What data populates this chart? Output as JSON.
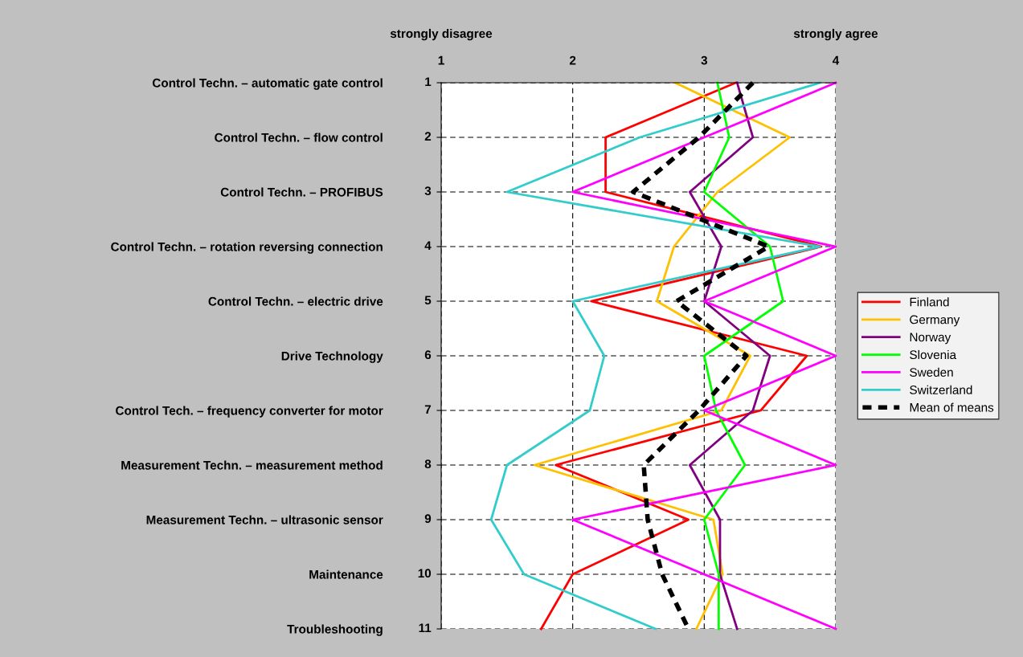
{
  "chart_data": {
    "type": "line",
    "orientation": "horizontal",
    "categories": [
      "Control Techn. – automatic gate control",
      "Control Techn. – flow control",
      "Control Techn. – PROFIBUS",
      "Control Techn. – rotation reversing connection",
      "Control Techn. – electric drive",
      "Drive Technology",
      "Control Tech. – frequency converter for motor",
      "Measurement Techn. – measurement method",
      "Measurement Techn. – ultrasonic sensor",
      "Maintenance",
      "Troubleshooting"
    ],
    "xlim": [
      1,
      4
    ],
    "xticks": [
      1,
      2,
      3,
      4
    ],
    "grid": true,
    "legend": "right",
    "marker": "none",
    "annotations": [
      "strongly disagree",
      "strongly agree",
      "1",
      "2",
      "3",
      "4",
      "5",
      "6",
      "7",
      "8",
      "9",
      "10",
      "11"
    ],
    "series": [
      {
        "name": "Finland",
        "color": "#ff0000",
        "values": [
          3.24,
          2.25,
          2.25,
          3.89,
          2.14,
          3.78,
          3.43,
          1.87,
          2.88,
          2.0,
          1.76
        ]
      },
      {
        "name": "Germany",
        "color": "#ffc000",
        "values": [
          2.78,
          3.65,
          3.1,
          2.77,
          2.64,
          3.35,
          3.13,
          1.71,
          3.07,
          3.14,
          2.94
        ]
      },
      {
        "name": "Norway",
        "color": "#800080",
        "values": [
          3.25,
          3.37,
          2.89,
          3.13,
          3.0,
          3.5,
          3.37,
          2.89,
          3.12,
          3.12,
          3.25
        ]
      },
      {
        "name": "Slovenia",
        "color": "#00ff00",
        "values": [
          3.1,
          3.19,
          3.0,
          3.5,
          3.6,
          3.0,
          3.09,
          3.31,
          3.0,
          3.11,
          3.11
        ]
      },
      {
        "name": "Sweden",
        "color": "#ff00ff",
        "values": [
          4.0,
          3.0,
          2.0,
          4.0,
          3.0,
          4.0,
          3.0,
          4.0,
          2.0,
          3.0,
          4.0
        ]
      },
      {
        "name": "Switzerland",
        "color": "#33cccc",
        "values": [
          3.88,
          2.51,
          1.5,
          3.88,
          2.0,
          2.24,
          2.13,
          1.5,
          1.38,
          1.63,
          2.63
        ]
      },
      {
        "name": "Mean of means",
        "color": "#000000",
        "line_style": "dashed",
        "values": [
          3.37,
          2.96,
          2.46,
          3.49,
          2.79,
          3.32,
          2.96,
          2.54,
          2.57,
          2.68,
          2.88
        ]
      }
    ]
  }
}
